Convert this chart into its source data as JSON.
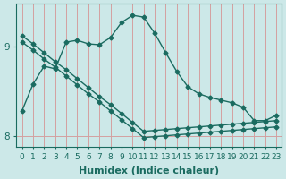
{
  "xlabel": "Humidex (Indice chaleur)",
  "bg_color": "#cce8e8",
  "line_color": "#1a6b60",
  "grid_color": "#d4a0a0",
  "xlim": [
    -0.5,
    23.5
  ],
  "ylim": [
    7.88,
    9.48
  ],
  "yticks": [
    8,
    9
  ],
  "xticks": [
    0,
    1,
    2,
    3,
    4,
    5,
    6,
    7,
    8,
    9,
    10,
    11,
    12,
    13,
    14,
    15,
    16,
    17,
    18,
    19,
    20,
    21,
    22,
    23
  ],
  "curve1_x": [
    0,
    1,
    2,
    3,
    4,
    5,
    6,
    7,
    8,
    9,
    10,
    11,
    12,
    13,
    14,
    15,
    16,
    17,
    18,
    19,
    20,
    21,
    22,
    23
  ],
  "curve1_y": [
    8.28,
    8.58,
    8.78,
    8.75,
    9.05,
    9.07,
    9.03,
    9.02,
    9.1,
    9.27,
    9.35,
    9.33,
    9.15,
    8.93,
    8.72,
    8.55,
    8.47,
    8.43,
    8.4,
    8.37,
    8.32,
    8.17,
    8.17,
    8.23
  ],
  "curve2_x": [
    0,
    1,
    2,
    3,
    4,
    5,
    6,
    7,
    8,
    9,
    10,
    11,
    12,
    13,
    14,
    15,
    16,
    17,
    18,
    19,
    20,
    21,
    22,
    23
  ],
  "curve2_y": [
    9.05,
    8.96,
    8.86,
    8.77,
    8.67,
    8.57,
    8.47,
    8.38,
    8.28,
    8.18,
    8.08,
    7.98,
    7.99,
    8.0,
    8.01,
    8.02,
    8.03,
    8.04,
    8.05,
    8.06,
    8.07,
    8.08,
    8.09,
    8.1
  ],
  "curve3_x": [
    0,
    1,
    2,
    3,
    4,
    5,
    6,
    7,
    8,
    9,
    10,
    11,
    12,
    13,
    14,
    15,
    16,
    17,
    18,
    19,
    20,
    21,
    22,
    23
  ],
  "curve3_y": [
    9.12,
    9.03,
    8.93,
    8.83,
    8.74,
    8.64,
    8.54,
    8.44,
    8.35,
    8.25,
    8.15,
    8.05,
    8.06,
    8.07,
    8.08,
    8.09,
    8.1,
    8.11,
    8.12,
    8.13,
    8.14,
    8.15,
    8.16,
    8.17
  ],
  "marker_size": 2.5,
  "line_width": 1.0,
  "font_size_label": 8,
  "font_size_tick": 6.5
}
